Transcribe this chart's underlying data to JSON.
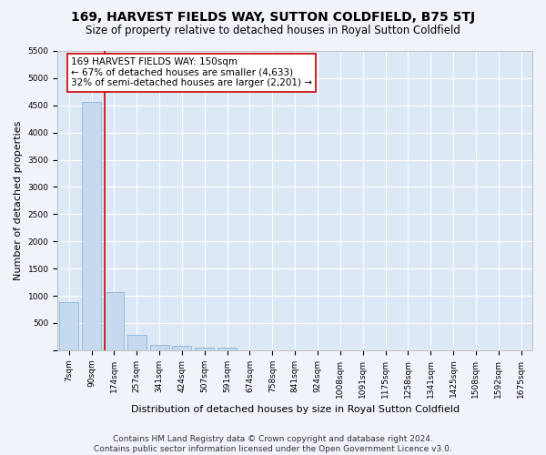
{
  "title": "169, HARVEST FIELDS WAY, SUTTON COLDFIELD, B75 5TJ",
  "subtitle": "Size of property relative to detached houses in Royal Sutton Coldfield",
  "xlabel": "Distribution of detached houses by size in Royal Sutton Coldfield",
  "ylabel": "Number of detached properties",
  "bar_color": "#c5d9ef",
  "bar_edge_color": "#7aadd4",
  "annotation_line_color": "#cc0000",
  "annotation_box_color": "#cc0000",
  "annotation_line1": "169 HARVEST FIELDS WAY: 150sqm",
  "annotation_line2": "← 67% of detached houses are smaller (4,633)",
  "annotation_line3": "32% of semi-detached houses are larger (2,201) →",
  "categories": [
    "7sqm",
    "90sqm",
    "174sqm",
    "257sqm",
    "341sqm",
    "424sqm",
    "507sqm",
    "591sqm",
    "674sqm",
    "758sqm",
    "841sqm",
    "924sqm",
    "1008sqm",
    "1091sqm",
    "1175sqm",
    "1258sqm",
    "1341sqm",
    "1425sqm",
    "1508sqm",
    "1592sqm",
    "1675sqm"
  ],
  "bar_values": [
    880,
    4560,
    1060,
    280,
    90,
    80,
    55,
    45,
    0,
    0,
    0,
    0,
    0,
    0,
    0,
    0,
    0,
    0,
    0,
    0,
    0
  ],
  "ylim": [
    0,
    5500
  ],
  "yticks": [
    0,
    500,
    1000,
    1500,
    2000,
    2500,
    3000,
    3500,
    4000,
    4500,
    5000,
    5500
  ],
  "vline_position": 1.57,
  "footer_line1": "Contains HM Land Registry data © Crown copyright and database right 2024.",
  "footer_line2": "Contains public sector information licensed under the Open Government Licence v3.0.",
  "background_color": "#f0f4fa",
  "plot_bg_color": "#dce8f5",
  "grid_color": "#ffffff",
  "title_fontsize": 10,
  "subtitle_fontsize": 8.5,
  "footer_fontsize": 6.5,
  "ylabel_fontsize": 8,
  "xlabel_fontsize": 8,
  "tick_fontsize": 6.5,
  "annotation_fontsize": 7.5
}
